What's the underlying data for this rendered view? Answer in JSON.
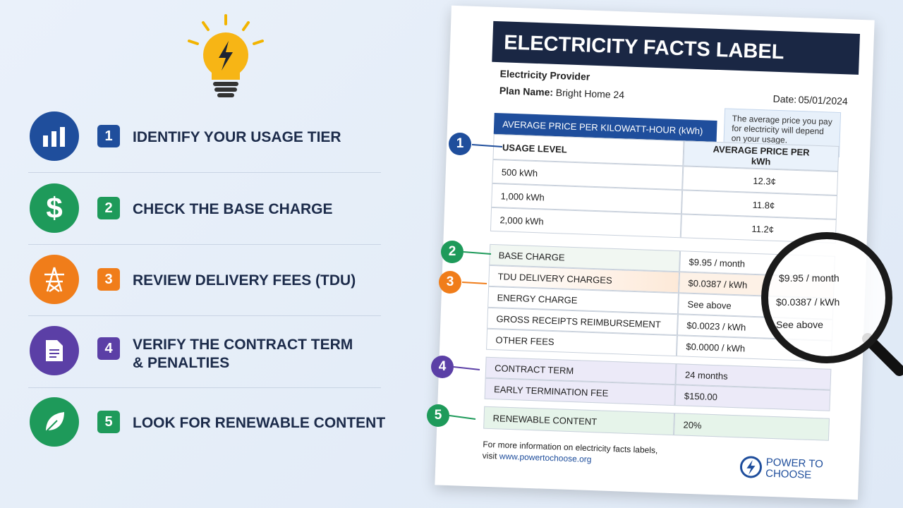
{
  "steps": [
    {
      "number": "1",
      "label": "IDENTIFY YOUR USAGE TIER"
    },
    {
      "number": "2",
      "label": "CHECK THE BASE CHARGE"
    },
    {
      "number": "3",
      "label": "REVIEW DELIVERY FEES (TDU)"
    },
    {
      "number": "4",
      "label": "VERIFY THE CONTRACT TERM & PENALTIES"
    },
    {
      "number": "5",
      "label": "LOOK FOR RENEWABLE CONTENT"
    }
  ],
  "label": {
    "title": "ELECTRICITY FACTS LABEL",
    "provider": "Electricity Provider",
    "plan_name_label": "Plan Name:",
    "plan_name": "Bright Home 24",
    "date_label": "Date:",
    "date": "05/01/2024",
    "note": "The average price you pay for electricity will depend on your usage.",
    "price_section": {
      "title": "AVERAGE PRICE PER KILOWATT-HOUR (kWh)",
      "headers": [
        "USAGE LEVEL",
        "AVERAGE PRICE PER kWh"
      ],
      "rows": [
        [
          "500 kWh",
          "12.3¢"
        ],
        [
          "1,000 kWh",
          "11.8¢"
        ],
        [
          "2,000 kWh",
          "11.2¢"
        ]
      ]
    },
    "charges": [
      [
        "BASE CHARGE",
        "$9.95 / month"
      ],
      [
        "TDU DELIVERY CHARGES",
        "$0.0387 / kWh"
      ],
      [
        "ENERGY CHARGE",
        "See above"
      ],
      [
        "GROSS RECEIPTS REIMBURSEMENT",
        "$0.0023 / kWh"
      ],
      [
        "OTHER FEES",
        "$0.0000 / kWh"
      ]
    ],
    "contract": [
      [
        "CONTRACT TERM",
        "24 months"
      ],
      [
        "EARLY TERMINATION FEE",
        "$150.00"
      ]
    ],
    "renewable": [
      "RENEWABLE CONTENT",
      "20%"
    ],
    "footer": "For more information on electricity facts labels, visit",
    "url": "www.powertochoose.org",
    "logo": "POWER TO CHOOSE"
  }
}
